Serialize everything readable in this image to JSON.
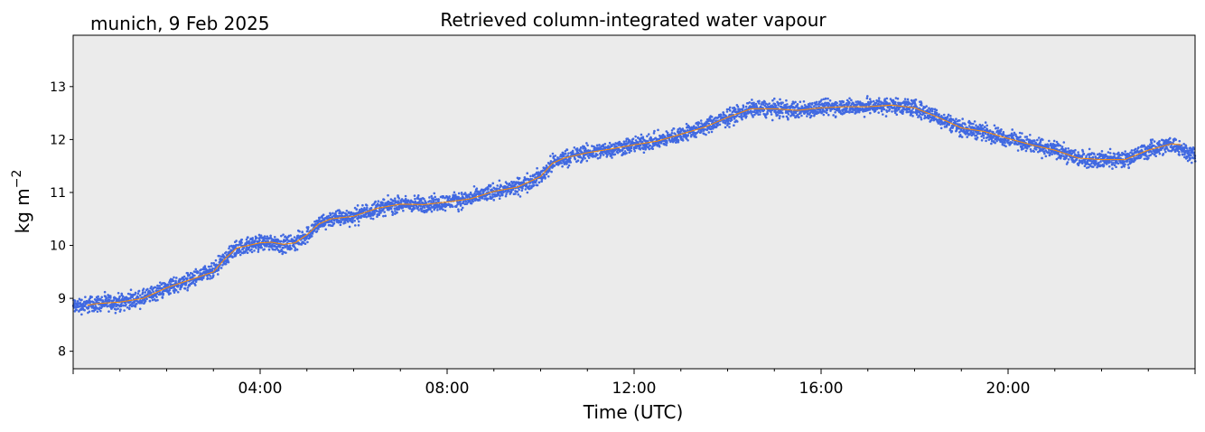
{
  "chart_data": {
    "type": "scatter",
    "title": "Retrieved column-integrated water vapour",
    "subtitle": "munich, 9 Feb 2025",
    "xlabel": "Time (UTC)",
    "ylabel": "kg m",
    "ylabel_sup": "−2",
    "xlim": [
      0,
      24
    ],
    "ylim": [
      7.67,
      13.97
    ],
    "yticks": [
      8,
      9,
      10,
      11,
      12,
      13
    ],
    "xticks": [
      {
        "value": 0,
        "label": ""
      },
      {
        "value": 4,
        "label": "04:00"
      },
      {
        "value": 8,
        "label": "08:00"
      },
      {
        "value": 12,
        "label": "12:00"
      },
      {
        "value": 16,
        "label": "16:00"
      },
      {
        "value": 20,
        "label": "20:00"
      },
      {
        "value": 24,
        "label": ""
      }
    ],
    "grid": false,
    "background_color": "#ebebeb",
    "series": [
      {
        "kind": "scatter",
        "color": "#4169e1",
        "spread": 0.15,
        "x": [
          0.0,
          0.5,
          1.0,
          1.5,
          2.0,
          2.5,
          3.0,
          3.25,
          3.5,
          4.0,
          4.25,
          4.5,
          4.75,
          5.0,
          5.25,
          5.5,
          6.0,
          6.5,
          7.0,
          7.5,
          8.0,
          8.5,
          9.0,
          9.5,
          10.0,
          10.25,
          10.5,
          11.0,
          11.5,
          12.0,
          12.5,
          13.0,
          13.5,
          14.0,
          14.5,
          15.0,
          15.5,
          16.0,
          16.5,
          17.0,
          17.5,
          18.0,
          18.5,
          19.0,
          19.5,
          20.0,
          20.5,
          21.0,
          21.5,
          22.0,
          22.5,
          23.0,
          23.5,
          24.0
        ],
        "y": [
          8.85,
          8.9,
          8.93,
          9.0,
          9.2,
          9.35,
          9.5,
          9.75,
          9.95,
          10.05,
          10.06,
          10.02,
          10.05,
          10.2,
          10.4,
          10.5,
          10.55,
          10.7,
          10.78,
          10.77,
          10.82,
          10.88,
          11.02,
          11.1,
          11.3,
          11.55,
          11.65,
          11.75,
          11.82,
          11.9,
          11.97,
          12.1,
          12.23,
          12.42,
          12.58,
          12.58,
          12.55,
          12.6,
          12.62,
          12.62,
          12.65,
          12.6,
          12.42,
          12.22,
          12.15,
          12.02,
          11.9,
          11.8,
          11.65,
          11.62,
          11.62,
          11.8,
          11.92,
          11.7
        ]
      },
      {
        "kind": "line",
        "color": "#ff8c00",
        "x": [
          0.3,
          0.5,
          1.0,
          1.5,
          2.0,
          2.5,
          3.0,
          3.25,
          3.5,
          4.0,
          4.25,
          4.5,
          4.75,
          5.0,
          5.25,
          5.5,
          6.0,
          6.5,
          7.0,
          7.5,
          8.0,
          8.5,
          9.0,
          9.5,
          10.0,
          10.25,
          10.5,
          11.0,
          11.5,
          12.0,
          12.5,
          13.0,
          13.5,
          14.0,
          14.5,
          15.0,
          15.5,
          16.0,
          16.5,
          17.0,
          17.5,
          18.0,
          18.5,
          19.0,
          19.5,
          20.0,
          20.5,
          21.0,
          21.5,
          22.0,
          22.5,
          23.0,
          23.5,
          23.7
        ],
        "y": [
          8.87,
          8.9,
          8.93,
          9.0,
          9.2,
          9.35,
          9.5,
          9.75,
          9.95,
          10.05,
          10.06,
          10.02,
          10.05,
          10.2,
          10.4,
          10.5,
          10.55,
          10.7,
          10.78,
          10.77,
          10.82,
          10.88,
          11.02,
          11.1,
          11.3,
          11.55,
          11.65,
          11.75,
          11.82,
          11.9,
          11.97,
          12.1,
          12.23,
          12.42,
          12.58,
          12.58,
          12.55,
          12.6,
          12.62,
          12.62,
          12.65,
          12.6,
          12.42,
          12.22,
          12.15,
          12.02,
          11.9,
          11.8,
          11.65,
          11.62,
          11.62,
          11.8,
          11.92,
          11.9
        ]
      }
    ]
  }
}
